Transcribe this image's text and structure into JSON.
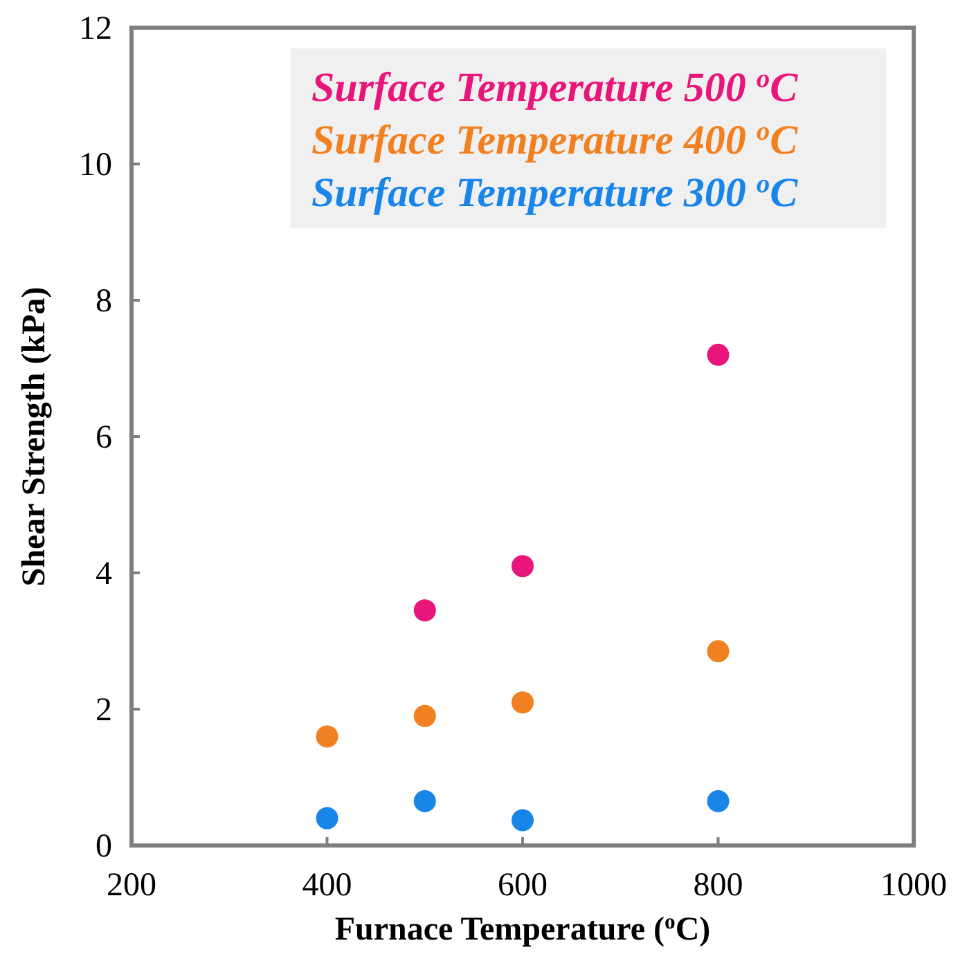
{
  "chart_data": {
    "type": "scatter",
    "xlabel": "Furnace Temperature ($^{o}$C)",
    "ylabel": "Shear Strength (kPa)",
    "xlim": [
      200,
      1000
    ],
    "xticks": [
      200,
      400,
      600,
      800,
      1000
    ],
    "ylim": [
      0,
      12
    ],
    "yticks": [
      0,
      2,
      4,
      6,
      8,
      10,
      12
    ],
    "grid": false,
    "legend": "top right",
    "marker": "circle",
    "series": [
      {
        "name": "Surface Temperature 500 $^{o}$C",
        "color": "#e8157a",
        "x": [
          500,
          600,
          800
        ],
        "values": [
          3.45,
          4.1,
          7.2
        ]
      },
      {
        "name": "Surface Temperature 400 $^{o}$C",
        "color": "#f08020",
        "x": [
          400,
          500,
          600,
          800
        ],
        "values": [
          1.6,
          1.9,
          2.1,
          2.85
        ]
      },
      {
        "name": "Surface Temperature 300 $^{o}$C",
        "color": "#1a85e8",
        "x": [
          400,
          500,
          600,
          800
        ],
        "values": [
          0.4,
          0.65,
          0.37,
          0.65
        ]
      }
    ]
  }
}
